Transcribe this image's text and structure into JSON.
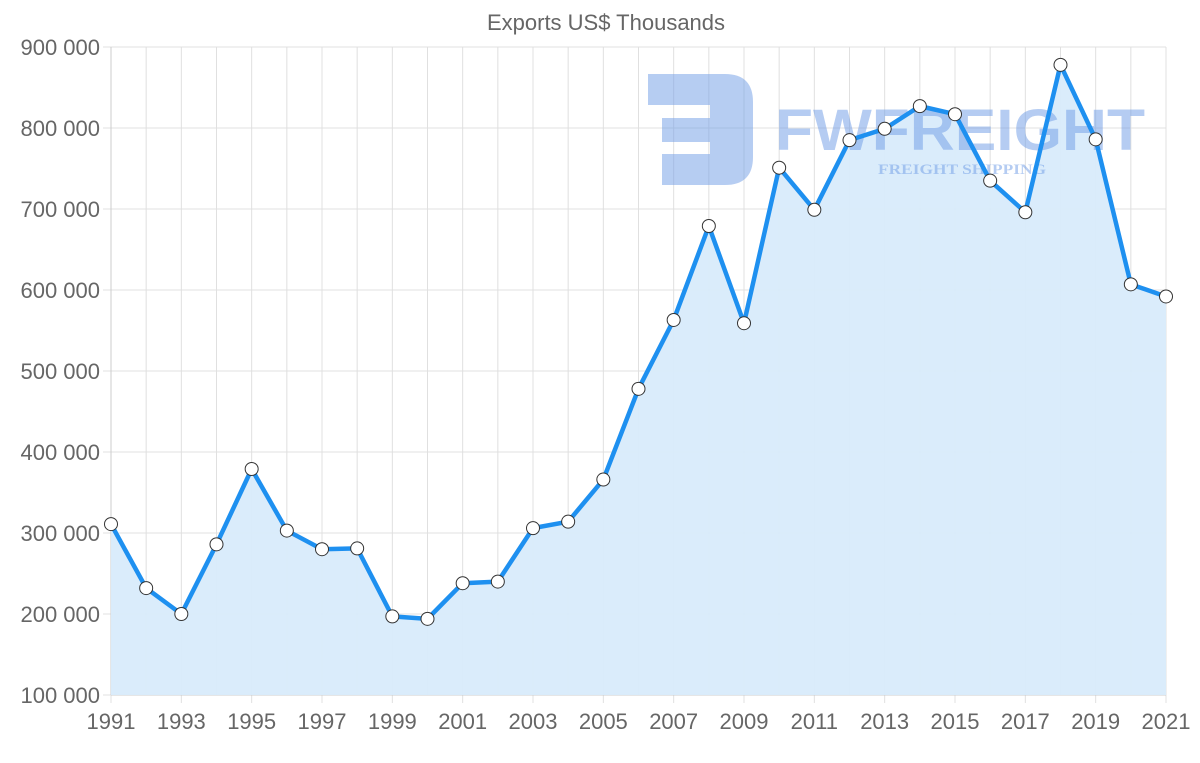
{
  "chart_data": {
    "type": "area",
    "title": "Exports US$ Thousands",
    "xlabel": "",
    "ylabel": "",
    "ylim": [
      100000,
      900000
    ],
    "xlim": [
      1991,
      2021
    ],
    "grid": true,
    "legend": null,
    "y_ticks": [
      "100 000",
      "200 000",
      "300 000",
      "400 000",
      "500 000",
      "600 000",
      "700 000",
      "800 000",
      "900 000"
    ],
    "x_ticks": [
      "1991",
      "1993",
      "1995",
      "1997",
      "1999",
      "2001",
      "2003",
      "2005",
      "2007",
      "2009",
      "2011",
      "2013",
      "2015",
      "2017",
      "2019",
      "2021"
    ],
    "categories": [
      1991,
      1992,
      1993,
      1994,
      1995,
      1996,
      1997,
      1998,
      1999,
      2000,
      2001,
      2002,
      2003,
      2004,
      2005,
      2006,
      2007,
      2008,
      2009,
      2010,
      2011,
      2012,
      2013,
      2014,
      2015,
      2016,
      2017,
      2018,
      2019,
      2020,
      2021
    ],
    "series": [
      {
        "name": "Exports US$ Thousands",
        "values": [
          311000,
          232000,
          200000,
          286000,
          379000,
          303000,
          280000,
          281000,
          197000,
          194000,
          238000,
          240000,
          306000,
          314000,
          366000,
          478000,
          563000,
          679000,
          559000,
          751000,
          699000,
          785000,
          799000,
          827000,
          817000,
          735000,
          696000,
          878000,
          786000,
          607000,
          592000
        ]
      }
    ],
    "colors": {
      "line": "#1e90f0",
      "fill": "#d8ebfb",
      "marker_fill": "#ffffff",
      "marker_stroke": "#333333",
      "grid": "#e0e0e0",
      "text": "#666666"
    }
  },
  "watermark": {
    "brand": "FWFREIGHT",
    "tagline": "FREIGHT SHIPPING",
    "color": "#6d9be6"
  }
}
